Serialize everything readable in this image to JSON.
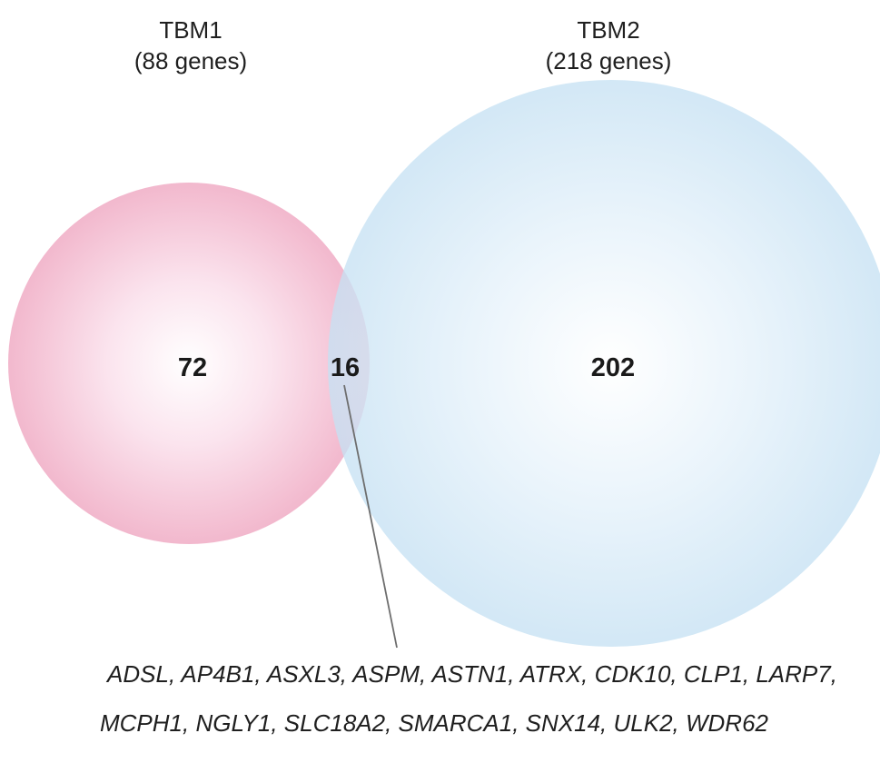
{
  "sets": {
    "a": {
      "name": "TBM1",
      "count_label": "(88 genes)",
      "color": "#f2b8cd"
    },
    "b": {
      "name": "TBM2",
      "count_label": "(218 genes)",
      "color": "#c3dff1"
    }
  },
  "regions": {
    "a_only": "72",
    "overlap": "16",
    "b_only": "202"
  },
  "overlap_genes": {
    "line1": "ADSL, AP4B1, ASXL3, ASPM, ASTN1, ATRX, CDK10, CLP1, LARP7,",
    "line2": "MCPH1, NGLY1, SLC18A2, SMARCA1, SNX14, ULK2, WDR62"
  }
}
